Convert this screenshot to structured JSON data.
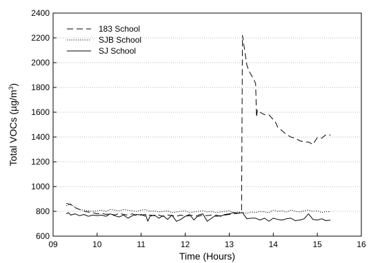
{
  "chart_data": {
    "type": "line",
    "xlabel": "Time (Hours)",
    "ylabel_main": "Total VOCs (µg/m",
    "ylabel_sup": "3",
    "ylabel_close": ")",
    "xlim": [
      9,
      16
    ],
    "ylim": [
      600,
      2400
    ],
    "x_ticks": [
      "09",
      "10",
      "11",
      "12",
      "13",
      "14",
      "15",
      "16"
    ],
    "y_ticks": [
      "600",
      "800",
      "1000",
      "1200",
      "1400",
      "1600",
      "1800",
      "2000",
      "2200",
      "2400"
    ],
    "grid": "horizontal-dotted",
    "legend_position": "top-left",
    "series": [
      {
        "name": "183 School",
        "style": "dashed",
        "color": "#000000",
        "x": [
          9.3,
          9.4,
          9.5,
          9.6,
          9.7,
          9.8,
          9.9,
          10.0,
          10.1,
          10.2,
          10.3,
          10.4,
          10.5,
          10.6,
          10.7,
          10.8,
          10.9,
          11.0,
          11.1,
          11.2,
          11.3,
          11.4,
          11.5,
          11.6,
          11.7,
          11.8,
          11.9,
          12.0,
          12.1,
          12.2,
          12.3,
          12.4,
          12.5,
          12.6,
          12.7,
          12.8,
          12.9,
          13.0,
          13.1,
          13.2,
          13.25,
          13.28,
          13.3,
          13.35,
          13.4,
          13.45,
          13.5,
          13.55,
          13.6,
          13.62,
          13.64,
          13.66,
          13.7,
          13.8,
          13.9,
          14.0,
          14.05,
          14.1,
          14.2,
          14.3,
          14.4,
          14.5,
          14.6,
          14.7,
          14.8,
          14.9,
          15.0,
          15.1,
          15.2,
          15.3
        ],
        "y": [
          865,
          855,
          830,
          815,
          800,
          795,
          790,
          780,
          785,
          775,
          780,
          770,
          785,
          775,
          770,
          780,
          765,
          775,
          760,
          770,
          765,
          770,
          760,
          770,
          765,
          760,
          770,
          760,
          765,
          770,
          760,
          770,
          765,
          770,
          760,
          765,
          770,
          775,
          780,
          785,
          790,
          795,
          2220,
          2100,
          1980,
          1930,
          1900,
          1870,
          1830,
          1560,
          1620,
          1610,
          1600,
          1580,
          1580,
          1540,
          1520,
          1480,
          1450,
          1420,
          1400,
          1390,
          1370,
          1360,
          1360,
          1340,
          1395,
          1390,
          1420,
          1415
        ]
      },
      {
        "name": "SJB School",
        "style": "dotted",
        "color": "#000000",
        "x": [
          9.3,
          9.4,
          9.5,
          9.6,
          9.7,
          9.8,
          9.9,
          10.0,
          10.1,
          10.2,
          10.3,
          10.4,
          10.5,
          10.6,
          10.7,
          10.8,
          10.9,
          11.0,
          11.1,
          11.2,
          11.3,
          11.4,
          11.5,
          11.6,
          11.7,
          11.8,
          11.9,
          12.0,
          12.1,
          12.2,
          12.3,
          12.4,
          12.5,
          12.6,
          12.7,
          12.8,
          12.9,
          13.0,
          13.1,
          13.2,
          13.3,
          13.4,
          13.5,
          13.6,
          13.7,
          13.8,
          13.9,
          14.0,
          14.1,
          14.2,
          14.3,
          14.4,
          14.5,
          14.6,
          14.7,
          14.8,
          14.9,
          15.0,
          15.1,
          15.2,
          15.3
        ],
        "y": [
          845,
          860,
          830,
          815,
          810,
          805,
          800,
          805,
          810,
          800,
          815,
          810,
          805,
          815,
          810,
          805,
          800,
          810,
          815,
          800,
          805,
          795,
          800,
          805,
          790,
          795,
          800,
          805,
          790,
          795,
          800,
          805,
          795,
          800,
          790,
          795,
          800,
          805,
          790,
          795,
          790,
          785,
          795,
          790,
          800,
          795,
          790,
          810,
          800,
          805,
          795,
          810,
          800,
          795,
          805,
          810,
          800,
          805,
          790,
          800,
          795
        ]
      },
      {
        "name": "SJ School",
        "style": "solid",
        "color": "#000000",
        "x": [
          9.3,
          9.35,
          9.4,
          9.5,
          9.6,
          9.7,
          9.8,
          9.9,
          10.0,
          10.1,
          10.2,
          10.3,
          10.4,
          10.5,
          10.6,
          10.7,
          10.8,
          10.9,
          11.0,
          11.1,
          11.15,
          11.2,
          11.3,
          11.4,
          11.5,
          11.6,
          11.7,
          11.8,
          11.9,
          12.0,
          12.1,
          12.2,
          12.3,
          12.4,
          12.5,
          12.6,
          12.7,
          12.8,
          12.9,
          13.0,
          13.1,
          13.2,
          13.3,
          13.4,
          13.5,
          13.6,
          13.7,
          13.8,
          13.9,
          14.0,
          14.1,
          14.2,
          14.3,
          14.4,
          14.5,
          14.6,
          14.7,
          14.8,
          14.9,
          15.0,
          15.1,
          15.2,
          15.3
        ],
        "y": [
          780,
          790,
          770,
          780,
          765,
          775,
          760,
          770,
          765,
          770,
          760,
          780,
          765,
          755,
          770,
          745,
          765,
          775,
          770,
          775,
          720,
          760,
          770,
          745,
          765,
          735,
          770,
          720,
          735,
          760,
          775,
          730,
          770,
          780,
          720,
          745,
          770,
          760,
          775,
          780,
          790,
          785,
          790,
          740,
          745,
          745,
          730,
          745,
          720,
          745,
          735,
          730,
          740,
          745,
          725,
          730,
          740,
          780,
          735,
          730,
          740,
          725,
          730
        ]
      }
    ]
  }
}
